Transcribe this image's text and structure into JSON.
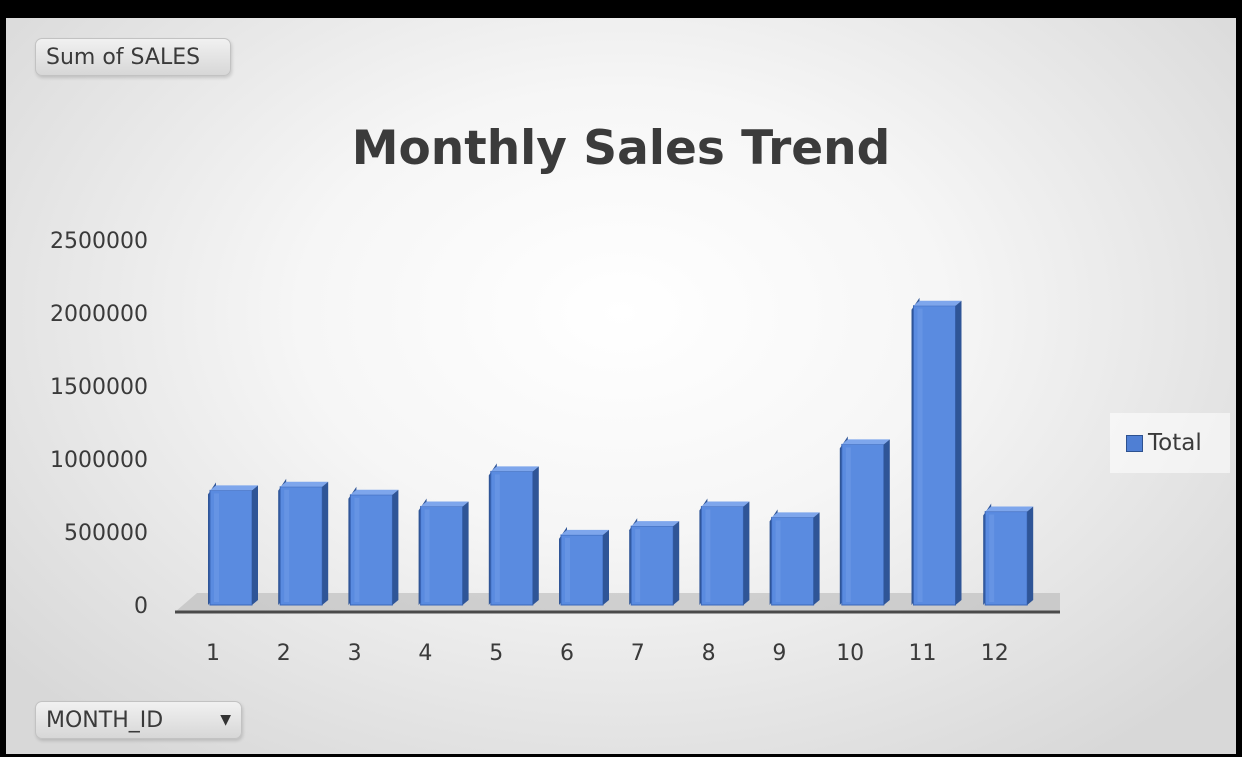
{
  "filter_buttons": {
    "values_field": "Sum of SALES",
    "axis_field": "MONTH_ID"
  },
  "colors": {
    "bar_front": "#5a8be0",
    "bar_side": "#2f5597",
    "bar_top": "#7ea6ec",
    "floor": "#b4b4b4"
  },
  "chart_data": {
    "type": "bar",
    "title": "Monthly Sales Trend",
    "categories": [
      "1",
      "2",
      "3",
      "4",
      "5",
      "6",
      "7",
      "8",
      "9",
      "10",
      "11",
      "12"
    ],
    "series": [
      {
        "name": "Total",
        "values": [
          785000,
          810000,
          755000,
          675000,
          915000,
          480000,
          540000,
          675000,
          600000,
          1100000,
          2050000,
          640000
        ]
      }
    ],
    "ylim": [
      0,
      2500000
    ],
    "yticks": [
      "0",
      "500000",
      "1000000",
      "1500000",
      "2000000",
      "2500000"
    ],
    "xlabel": "",
    "ylabel": "",
    "legend": "right",
    "grid": false,
    "style": "3d-clustered-column"
  }
}
